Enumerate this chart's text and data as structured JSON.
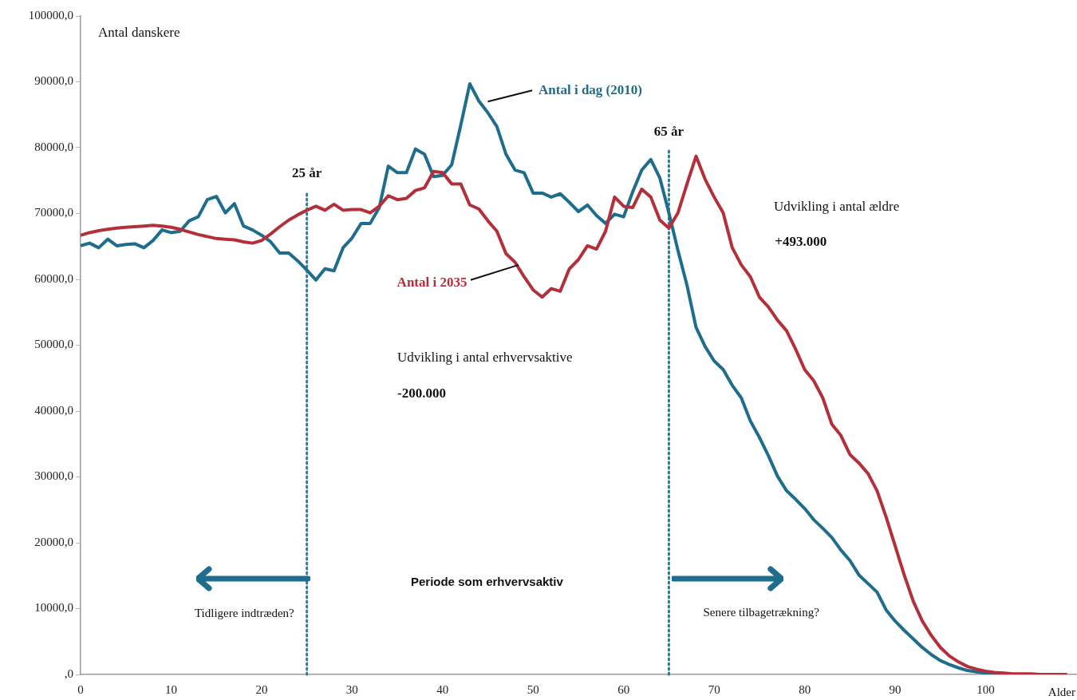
{
  "chart_data": {
    "type": "line",
    "xlabel": "Alder",
    "ylabel": "Antal danskere",
    "x": [
      0,
      1,
      2,
      3,
      4,
      5,
      6,
      7,
      8,
      9,
      10,
      11,
      12,
      13,
      14,
      15,
      16,
      17,
      18,
      19,
      20,
      21,
      22,
      23,
      24,
      25,
      26,
      27,
      28,
      29,
      30,
      31,
      32,
      33,
      34,
      35,
      36,
      37,
      38,
      39,
      40,
      41,
      42,
      43,
      44,
      45,
      46,
      47,
      48,
      49,
      50,
      51,
      52,
      53,
      54,
      55,
      56,
      57,
      58,
      59,
      60,
      61,
      62,
      63,
      64,
      65,
      66,
      67,
      68,
      69,
      70,
      71,
      72,
      73,
      74,
      75,
      76,
      77,
      78,
      79,
      80,
      81,
      82,
      83,
      84,
      85,
      86,
      87,
      88,
      89,
      90,
      91,
      92,
      93,
      94,
      95,
      96,
      97,
      98,
      99,
      100,
      101,
      102,
      103,
      104,
      105,
      106,
      107,
      108,
      109
    ],
    "series": [
      {
        "name": "Antal i dag (2010)",
        "color": "#1f6d8c",
        "values": [
          65100,
          65500,
          64800,
          66100,
          65100,
          65300,
          65400,
          64800,
          65900,
          67500,
          67100,
          67300,
          68900,
          69500,
          72100,
          72600,
          70100,
          71500,
          68100,
          67500,
          66700,
          65700,
          64000,
          64000,
          62800,
          61400,
          59900,
          61600,
          61300,
          64800,
          66300,
          68500,
          68500,
          70900,
          77200,
          76200,
          76200,
          79800,
          79000,
          75600,
          75800,
          77400,
          83400,
          89700,
          87100,
          85300,
          83200,
          79000,
          76600,
          76200,
          73100,
          73100,
          72500,
          73000,
          71700,
          70300,
          71300,
          69700,
          68500,
          69900,
          69500,
          73300,
          76600,
          78200,
          75400,
          70100,
          64400,
          59100,
          52700,
          49800,
          47600,
          46300,
          43900,
          42000,
          38500,
          36000,
          33200,
          30100,
          27900,
          26600,
          25200,
          23500,
          22200,
          20800,
          18900,
          17300,
          15100,
          13800,
          12500,
          9800,
          8100,
          6700,
          5400,
          4100,
          3000,
          2100,
          1500,
          1000,
          600,
          400,
          200,
          100,
          0,
          null,
          null,
          null,
          null,
          null,
          null,
          null
        ]
      },
      {
        "name": "Antal i 2035",
        "color": "#b3303a",
        "values": [
          66700,
          67100,
          67400,
          67600,
          67800,
          67900,
          68000,
          68100,
          68200,
          68100,
          67900,
          67600,
          67200,
          66800,
          66500,
          66200,
          66100,
          66000,
          65700,
          65500,
          65900,
          66900,
          68000,
          69000,
          69800,
          70500,
          71100,
          70500,
          71400,
          70500,
          70600,
          70600,
          70100,
          71100,
          72700,
          72100,
          72300,
          73500,
          73900,
          76400,
          76200,
          74500,
          74500,
          71300,
          70700,
          68900,
          67300,
          63900,
          62600,
          60400,
          58400,
          57300,
          58600,
          58200,
          61600,
          63000,
          65100,
          64600,
          67300,
          72500,
          71100,
          70900,
          73700,
          72500,
          69000,
          67800,
          70100,
          74500,
          78700,
          75200,
          72500,
          70100,
          64800,
          62200,
          60400,
          57300,
          55800,
          53800,
          52200,
          49400,
          46300,
          44600,
          42000,
          38000,
          36300,
          33400,
          32100,
          30500,
          27900,
          23900,
          19500,
          15100,
          11100,
          8100,
          5900,
          4100,
          2800,
          1900,
          1200,
          800,
          500,
          300,
          200,
          100,
          100,
          100,
          0,
          0,
          0,
          0
        ]
      }
    ],
    "xlim": [
      0,
      110
    ],
    "xticks": [
      0,
      10,
      20,
      30,
      40,
      50,
      60,
      70,
      80,
      90,
      100
    ],
    "ylim": [
      0,
      100000
    ],
    "yticks": [
      {
        "value": 0,
        "label": ",0"
      },
      {
        "value": 10000,
        "label": "10000,0"
      },
      {
        "value": 20000,
        "label": "20000,0"
      },
      {
        "value": 30000,
        "label": "30000,0"
      },
      {
        "value": 40000,
        "label": "40000,0"
      },
      {
        "value": 50000,
        "label": "50000,0"
      },
      {
        "value": 60000,
        "label": "60000,0"
      },
      {
        "value": 70000,
        "label": "70000,0"
      },
      {
        "value": 80000,
        "label": "80000,0"
      },
      {
        "value": 90000,
        "label": "90000,0"
      },
      {
        "value": 100000,
        "label": "100000,0"
      }
    ],
    "ref_lines": [
      {
        "axis": "x",
        "value": 25,
        "label": "25 år",
        "color": "#2a7ea0",
        "line_style": "dotted"
      },
      {
        "axis": "x",
        "value": 65,
        "label": "65 år",
        "color": "#2a7ea0",
        "line_style": "dotted"
      }
    ],
    "annotations": [
      "Udvikling i antal erhvervsaktive",
      "-200.000",
      "Udvikling i antal ældre",
      "+493.000",
      "Periode som erhvervsaktiv",
      "Tidligere indtræden?",
      "Senere tilbagetrækning?"
    ],
    "grid": false,
    "legend": false,
    "marker": "none",
    "line_style": "solid"
  }
}
